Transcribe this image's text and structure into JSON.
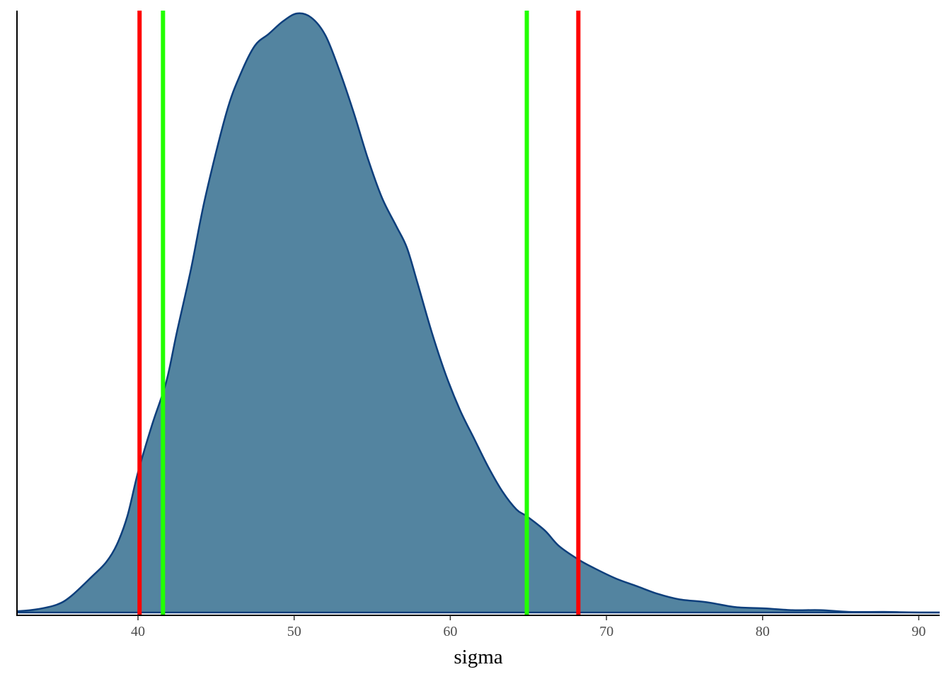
{
  "chart_data": {
    "type": "area",
    "title": "",
    "xlabel": "sigma",
    "ylabel": "",
    "xlim": [
      32.25,
      91.34
    ],
    "ylim": [
      0,
      1
    ],
    "grid": false,
    "x_ticks": [
      40,
      50,
      60,
      70,
      80,
      90
    ],
    "x_tick_labels": [
      "40",
      "50",
      "60",
      "70",
      "80",
      "90"
    ],
    "y_ticks_shown": false,
    "density_curve": {
      "x": [
        32.25,
        33.43,
        34.79,
        35.7,
        37.05,
        37.96,
        38.64,
        39.32,
        40.0,
        40.91,
        41.81,
        42.49,
        43.4,
        44.3,
        45.66,
        46.57,
        47.48,
        48.38,
        49.29,
        50.19,
        51.1,
        52.01,
        52.91,
        53.82,
        54.73,
        55.63,
        56.54,
        57.22,
        57.9,
        58.81,
        59.71,
        60.62,
        61.53,
        62.43,
        63.34,
        64.24,
        64.88,
        66.05,
        66.96,
        68.23,
        69.22,
        70.58,
        71.94,
        73.3,
        74.66,
        76.47,
        78.28,
        80.09,
        81.91,
        83.72,
        85.53,
        87.8,
        90.07,
        91.34
      ],
      "y_relative": [
        0.002,
        0.005,
        0.013,
        0.027,
        0.06,
        0.084,
        0.113,
        0.161,
        0.234,
        0.314,
        0.385,
        0.468,
        0.574,
        0.692,
        0.834,
        0.899,
        0.946,
        0.966,
        0.987,
        1.0,
        0.993,
        0.963,
        0.904,
        0.834,
        0.757,
        0.692,
        0.645,
        0.609,
        0.55,
        0.468,
        0.397,
        0.338,
        0.29,
        0.243,
        0.202,
        0.172,
        0.161,
        0.137,
        0.111,
        0.088,
        0.074,
        0.057,
        0.044,
        0.031,
        0.022,
        0.017,
        0.009,
        0.007,
        0.004,
        0.004,
        0.001,
        0.001,
        0,
        0
      ],
      "fill_color": "#5384a0",
      "line_color": "#0e3f7c"
    },
    "vertical_lines": [
      {
        "x": 40.1,
        "color": "#ff0000"
      },
      {
        "x": 68.2,
        "color": "#ff0000"
      },
      {
        "x": 41.6,
        "color": "#22ff00"
      },
      {
        "x": 64.9,
        "color": "#22ff00"
      }
    ]
  }
}
